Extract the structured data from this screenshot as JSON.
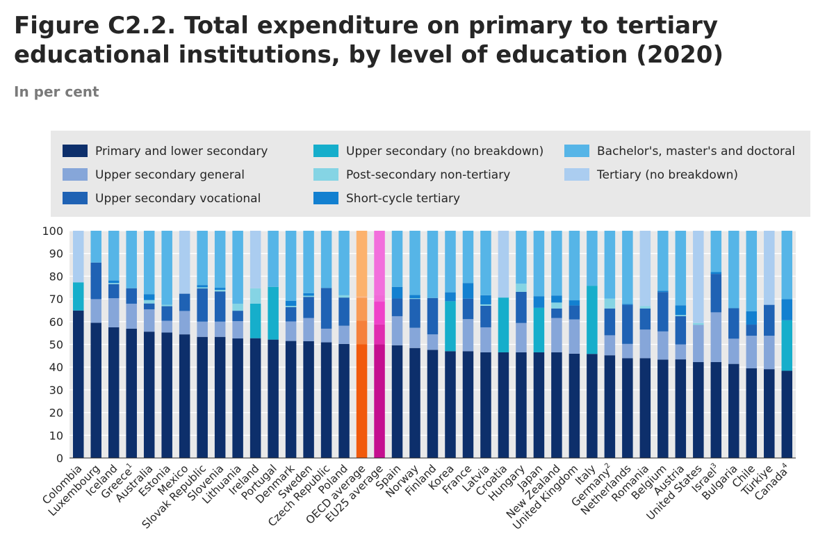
{
  "title": "Figure C2.2. Total expenditure on primary to tertiary educational institutions, by level of education (2020)",
  "subtitle": "In per cent",
  "chart_data": {
    "type": "bar",
    "stacked": true,
    "title": "Figure C2.2. Total expenditure on primary to tertiary educational institutions, by level of education (2020)",
    "subtitle": "In per cent",
    "ylim": [
      0,
      100
    ],
    "y_ticks": [
      0,
      10,
      20,
      30,
      40,
      50,
      60,
      70,
      80,
      90,
      100
    ],
    "grid": true,
    "legend_position": "top",
    "categories": [
      {
        "label": "Colombia",
        "sup": ""
      },
      {
        "label": "Luxembourg",
        "sup": ""
      },
      {
        "label": "Iceland",
        "sup": ""
      },
      {
        "label": "Greece",
        "sup": "1"
      },
      {
        "label": "Australia",
        "sup": ""
      },
      {
        "label": "Estonia",
        "sup": ""
      },
      {
        "label": "Mexico",
        "sup": ""
      },
      {
        "label": "Slovak Republic",
        "sup": ""
      },
      {
        "label": "Slovenia",
        "sup": ""
      },
      {
        "label": "Lithuania",
        "sup": ""
      },
      {
        "label": "Ireland",
        "sup": ""
      },
      {
        "label": "Portugal",
        "sup": ""
      },
      {
        "label": "Denmark",
        "sup": ""
      },
      {
        "label": "Sweden",
        "sup": ""
      },
      {
        "label": "Czech Republic",
        "sup": ""
      },
      {
        "label": "Poland",
        "sup": ""
      },
      {
        "label": "OECD average",
        "sup": ""
      },
      {
        "label": "EU25 average",
        "sup": ""
      },
      {
        "label": "Spain",
        "sup": ""
      },
      {
        "label": "Norway",
        "sup": ""
      },
      {
        "label": "Finland",
        "sup": ""
      },
      {
        "label": "Korea",
        "sup": ""
      },
      {
        "label": "France",
        "sup": ""
      },
      {
        "label": "Latvia",
        "sup": ""
      },
      {
        "label": "Croatia",
        "sup": ""
      },
      {
        "label": "Hungary",
        "sup": ""
      },
      {
        "label": "Japan",
        "sup": ""
      },
      {
        "label": "New Zealand",
        "sup": ""
      },
      {
        "label": "United Kingdom",
        "sup": ""
      },
      {
        "label": "Italy",
        "sup": ""
      },
      {
        "label": "Germany",
        "sup": "2"
      },
      {
        "label": "Netherlands",
        "sup": ""
      },
      {
        "label": "Romania",
        "sup": ""
      },
      {
        "label": "Belgium",
        "sup": ""
      },
      {
        "label": "Austria",
        "sup": ""
      },
      {
        "label": "United States",
        "sup": ""
      },
      {
        "label": "Israel",
        "sup": "3"
      },
      {
        "label": "Bulgaria",
        "sup": ""
      },
      {
        "label": "Chile",
        "sup": ""
      },
      {
        "label": "Türkiye",
        "sup": ""
      },
      {
        "label": "Canada",
        "sup": "4"
      }
    ],
    "series": [
      {
        "name": "Primary and lower secondary",
        "color": "#0d2f6b",
        "values": [
          64.9,
          59.5,
          57.5,
          56.9,
          55.6,
          55.2,
          54.4,
          53.3,
          53.3,
          52.6,
          52.7,
          52.1,
          51.5,
          51.4,
          50.9,
          50.2,
          50.0,
          50.1,
          49.6,
          48.4,
          47.6,
          47.0,
          47.0,
          46.5,
          46.5,
          46.5,
          46.5,
          46.5,
          45.9,
          45.8,
          45.2,
          43.9,
          43.9,
          43.3,
          43.4,
          42.2,
          42.2,
          41.4,
          39.5,
          39.1,
          38.4
        ]
      },
      {
        "name": "Upper secondary general",
        "color": "#86a6d9",
        "values": [
          0,
          10.4,
          12.8,
          11.0,
          9.8,
          5.2,
          10.3,
          6.7,
          6.7,
          7.6,
          0,
          0,
          8.6,
          10.2,
          6.0,
          8.0,
          10.5,
          8.7,
          12.8,
          8.9,
          6.8,
          0,
          14.1,
          11.0,
          0,
          12.9,
          0,
          15.1,
          15.1,
          0,
          8.8,
          6.3,
          12.6,
          12.4,
          6.6,
          16.4,
          21.9,
          11.1,
          14.3,
          14.7,
          0
        ]
      },
      {
        "name": "Upper secondary vocational",
        "color": "#1f62b4",
        "values": [
          0,
          16.1,
          6.2,
          6.8,
          2.6,
          6.4,
          7.6,
          14.6,
          13.3,
          4.6,
          0,
          0,
          6.3,
          9.3,
          17.9,
          12.4,
          10.0,
          10.0,
          7.8,
          12.7,
          16.0,
          0,
          9.0,
          9.5,
          0,
          13.7,
          0,
          4.2,
          6.1,
          0,
          11.8,
          17.2,
          9.3,
          17.3,
          12.4,
          0,
          16.9,
          13.4,
          4.9,
          13.6,
          0
        ]
      },
      {
        "name": "Upper secondary (no breakdown)",
        "color": "#16aecb",
        "values": [
          12.4,
          0,
          0,
          0,
          0,
          0,
          0,
          0,
          0,
          0,
          15.2,
          23.2,
          0,
          0,
          0,
          0,
          0,
          0,
          0,
          0,
          0,
          22.0,
          0,
          0,
          24.1,
          0,
          19.6,
          0,
          0,
          30.0,
          0,
          0,
          0,
          0,
          0,
          0,
          0,
          0,
          0,
          0,
          22.2
        ]
      },
      {
        "name": "Post-secondary non-tertiary",
        "color": "#85d4e4",
        "values": [
          0,
          0,
          0.5,
          0,
          1.5,
          0.6,
          0,
          0.5,
          0.7,
          3.1,
          6.8,
          0,
          0.5,
          0.5,
          0,
          1.0,
          0.5,
          2.9,
          0,
          0.3,
          0,
          0,
          0,
          0.6,
          0,
          3.6,
          0,
          2.6,
          0,
          0,
          4.3,
          0,
          1.1,
          0,
          0.5,
          0.8,
          0,
          0,
          0,
          0,
          0
        ]
      },
      {
        "name": "Short-cycle tertiary",
        "color": "#1380d0",
        "values": [
          0,
          0,
          1.1,
          0,
          2.6,
          0,
          0,
          1.0,
          0.9,
          0,
          0,
          0,
          2.3,
          1.1,
          0,
          0,
          0,
          0,
          5.1,
          1.4,
          0,
          3.9,
          6.9,
          4.0,
          0,
          0,
          5.1,
          3.1,
          2.3,
          0,
          0,
          0.4,
          0,
          0.6,
          4.3,
          0,
          0.8,
          0,
          5.9,
          0,
          9.3
        ]
      },
      {
        "name": "Bachelor's, master's and doctoral",
        "color": "#56b5e7",
        "values": [
          0,
          14.0,
          21.9,
          25.3,
          27.9,
          32.6,
          0,
          23.9,
          25.1,
          32.1,
          0,
          24.7,
          30.8,
          27.5,
          25.2,
          28.4,
          29.0,
          28.3,
          24.7,
          28.3,
          29.6,
          27.1,
          23.0,
          28.4,
          0,
          23.3,
          28.8,
          28.5,
          30.6,
          24.2,
          29.9,
          32.2,
          0,
          26.4,
          32.8,
          0,
          18.2,
          34.1,
          35.4,
          0,
          30.1
        ]
      },
      {
        "name": "Tertiary (no breakdown)",
        "color": "#abcdf0",
        "values": [
          22.7,
          0,
          0,
          0,
          0,
          0,
          27.7,
          0,
          0,
          0,
          25.3,
          0,
          0,
          0,
          0,
          0,
          0,
          0,
          0,
          0,
          0,
          0,
          0,
          0,
          29.4,
          0,
          0,
          0,
          0,
          0,
          0,
          0,
          33.1,
          0,
          0,
          40.6,
          0,
          0,
          0,
          32.6,
          0
        ]
      }
    ],
    "highlight": {
      "OECD average": [
        "#f15a0c",
        "#f5813c",
        "#f89a54",
        "#f15a0c",
        "#fbb88a",
        "#f89a54",
        "#fcb26d",
        "#fff7a6"
      ],
      "EU25 average": [
        "#c40f8f",
        "#e02db0",
        "#ef42c9",
        "#c40f8f",
        "#f16ad8",
        "#ef42c9",
        "#f26fdc",
        "#f7b2f2"
      ]
    }
  }
}
